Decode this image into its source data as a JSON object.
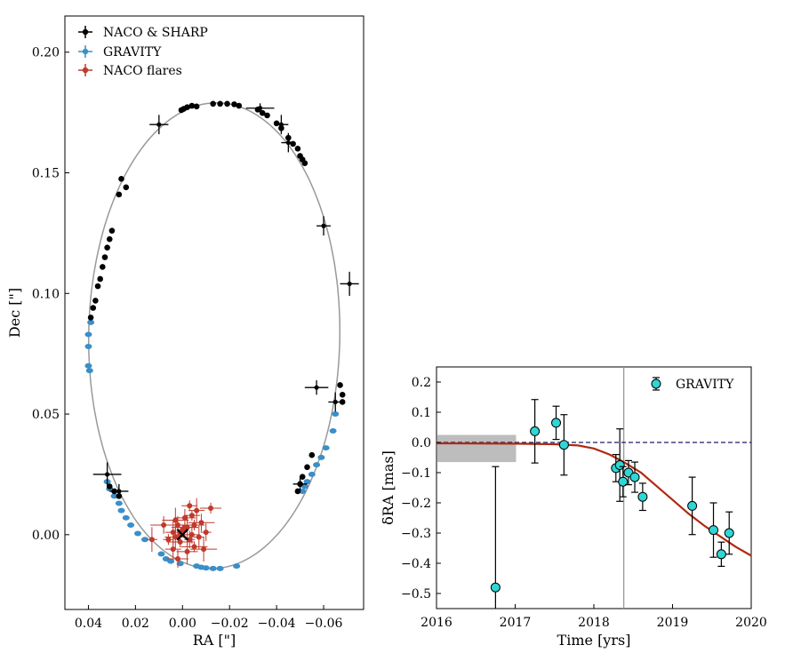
{
  "chart_data": [
    {
      "type": "scatter",
      "xlabel": "RA [\"]",
      "ylabel": "Dec [\"]",
      "xlim": [
        0.05,
        -0.077
      ],
      "ylim": [
        -0.031,
        0.215
      ],
      "xticks": [
        0.04,
        0.02,
        0.0,
        -0.02,
        -0.04,
        -0.06
      ],
      "xtick_labels": [
        "0.04",
        "0.02",
        "0.00",
        "−0.02",
        "−0.04",
        "−0.06"
      ],
      "yticks": [
        0.0,
        0.05,
        0.1,
        0.15,
        0.2
      ],
      "ytick_labels": [
        "0.00",
        "0.05",
        "0.10",
        "0.15",
        "0.20"
      ],
      "orbit": {
        "center_ra": -0.0135,
        "center_dec": 0.0825,
        "semi_ra": 0.0535,
        "semi_dec": 0.0965,
        "tilt_deg": 4
      },
      "legend": {
        "position": "top-left",
        "entries": [
          "NACO & SHARP",
          "GRAVITY",
          "NACO flares"
        ]
      },
      "colors": {
        "naco": "#000000",
        "gravity": "#3a8fc9",
        "flares": "#c0392b",
        "orbit": "#999999"
      },
      "series": [
        {
          "name": "NACO & SHARP",
          "points": [
            [
              -0.006,
              0.1775
            ],
            [
              -0.004,
              0.1778
            ],
            [
              -0.002,
              0.1772
            ],
            [
              -0.0005,
              0.1765
            ],
            [
              0.0005,
              0.176
            ],
            [
              -0.013,
              0.1786
            ],
            [
              -0.016,
              0.1786
            ],
            [
              -0.019,
              0.1786
            ],
            [
              -0.022,
              0.1784
            ],
            [
              -0.024,
              0.1778
            ],
            [
              -0.032,
              0.1762
            ],
            [
              -0.034,
              0.1748
            ],
            [
              -0.036,
              0.1738
            ],
            [
              -0.04,
              0.1705
            ],
            [
              -0.042,
              0.1685
            ],
            [
              -0.045,
              0.1645
            ],
            [
              -0.047,
              0.162
            ],
            [
              -0.049,
              0.16
            ],
            [
              -0.05,
              0.157
            ],
            [
              -0.051,
              0.1555
            ],
            [
              -0.052,
              0.154
            ],
            [
              0.024,
              0.144
            ],
            [
              0.026,
              0.1475
            ],
            [
              0.027,
              0.141
            ],
            [
              0.03,
              0.126
            ],
            [
              0.031,
              0.1225
            ],
            [
              0.032,
              0.119
            ],
            [
              0.033,
              0.115
            ],
            [
              0.034,
              0.111
            ],
            [
              0.035,
              0.106
            ],
            [
              0.036,
              0.103
            ],
            [
              0.037,
              0.097
            ],
            [
              0.038,
              0.094
            ],
            [
              0.039,
              0.09
            ],
            [
              -0.067,
              0.062
            ],
            [
              -0.068,
              0.058
            ],
            [
              -0.068,
              0.055
            ],
            [
              -0.055,
              0.033
            ],
            [
              -0.053,
              0.028
            ],
            [
              -0.051,
              0.024
            ],
            [
              -0.049,
              0.018
            ],
            [
              0.031,
              0.02
            ],
            [
              0.029,
              0.018
            ],
            [
              0.027,
              0.016
            ],
            [
              -0.05,
              0.021
            ]
          ],
          "errorbars": [
            [
              0.01,
              0.17,
              0.004,
              0.004
            ],
            [
              -0.033,
              0.1768,
              0.006,
              0.002
            ],
            [
              -0.042,
              0.17,
              0.003,
              0.004
            ],
            [
              -0.045,
              0.1625,
              0.003,
              0.004
            ],
            [
              -0.06,
              0.128,
              0.003,
              0.004
            ],
            [
              -0.071,
              0.104,
              0.004,
              0.005
            ],
            [
              -0.057,
              0.061,
              0.005,
              0.003
            ],
            [
              -0.065,
              0.055,
              0.003,
              0.004
            ],
            [
              0.032,
              0.025,
              0.006,
              0.005
            ],
            [
              0.027,
              0.018,
              0.004,
              0.003
            ],
            [
              -0.05,
              0.021,
              0.003,
              0.003
            ]
          ]
        },
        {
          "name": "GRAVITY",
          "points": [
            [
              0.039,
              0.088
            ],
            [
              0.04,
              0.083
            ],
            [
              0.04,
              0.078
            ],
            [
              0.04,
              0.07
            ],
            [
              0.0395,
              0.068
            ],
            [
              0.032,
              0.022
            ],
            [
              0.031,
              0.019
            ],
            [
              0.029,
              0.016
            ],
            [
              0.027,
              0.013
            ],
            [
              0.026,
              0.01
            ],
            [
              0.024,
              0.007
            ],
            [
              0.022,
              0.004
            ],
            [
              0.019,
              0.0005
            ],
            [
              0.016,
              -0.002
            ],
            [
              0.009,
              -0.008
            ],
            [
              0.007,
              -0.01
            ],
            [
              0.005,
              -0.011
            ],
            [
              0.001,
              -0.012
            ],
            [
              -0.006,
              -0.013
            ],
            [
              -0.008,
              -0.0135
            ],
            [
              -0.01,
              -0.0138
            ],
            [
              -0.013,
              -0.014
            ],
            [
              -0.016,
              -0.014
            ],
            [
              -0.023,
              -0.013
            ],
            [
              -0.051,
              0.018
            ],
            [
              -0.052,
              0.02
            ],
            [
              -0.053,
              0.022
            ],
            [
              -0.055,
              0.025
            ],
            [
              -0.057,
              0.029
            ],
            [
              -0.059,
              0.032
            ],
            [
              -0.061,
              0.036
            ],
            [
              -0.064,
              0.043
            ],
            [
              -0.065,
              0.05
            ]
          ]
        },
        {
          "name": "NACO flares",
          "points": [
            [
              0.0,
              0.002
            ],
            [
              0.002,
              0.004
            ],
            [
              -0.002,
              0.003
            ],
            [
              0.001,
              -0.003
            ],
            [
              -0.003,
              -0.002
            ],
            [
              0.004,
              0.001
            ],
            [
              -0.005,
              0.004
            ],
            [
              -0.008,
              0.005
            ],
            [
              -0.007,
              -0.001
            ],
            [
              -0.004,
              0.008
            ],
            [
              -0.001,
              0.007
            ],
            [
              0.003,
              0.006
            ],
            [
              0.006,
              -0.002
            ],
            [
              0.004,
              -0.006
            ],
            [
              -0.002,
              -0.007
            ],
            [
              -0.005,
              -0.005
            ],
            [
              -0.01,
              0.001
            ],
            [
              -0.006,
              0.01
            ],
            [
              -0.012,
              0.011
            ],
            [
              0.008,
              0.004
            ],
            [
              0.013,
              -0.002
            ],
            [
              -0.003,
              0.012
            ],
            [
              0.002,
              -0.01
            ],
            [
              -0.009,
              -0.006
            ],
            [
              0.001,
              0.0
            ],
            [
              -0.004,
              0.0
            ],
            [
              0.003,
              -0.001
            ],
            [
              -0.001,
              0.003
            ]
          ]
        }
      ],
      "sgr_a_marker": [
        0.0,
        0.0
      ]
    },
    {
      "type": "scatter",
      "xlabel": "Time [yrs]",
      "ylabel": "δRA [mas]",
      "xlim": [
        2016,
        2020
      ],
      "ylim": [
        -0.55,
        0.25
      ],
      "xticks": [
        2016,
        2017,
        2018,
        2019,
        2020
      ],
      "xtick_labels": [
        "2016",
        "2017",
        "2018",
        "2019",
        "2020"
      ],
      "yticks": [
        0.2,
        0.1,
        0.0,
        -0.1,
        -0.2,
        -0.3,
        -0.4,
        -0.5
      ],
      "ytick_labels": [
        "0.2",
        "0.1",
        "0.0",
        "−0.1",
        "−0.2",
        "−0.3",
        "−0.4",
        "−0.5"
      ],
      "legend": {
        "position": "top-right",
        "entries": [
          "GRAVITY"
        ]
      },
      "colors": {
        "points": "#2fd6d6",
        "model": "#b02a10",
        "zero_line": "#1a1a6e",
        "band": "#bdbdbd",
        "vline": "#999999"
      },
      "shaded_band": {
        "x": [
          2016,
          2017
        ],
        "y": [
          -0.065,
          0.025
        ]
      },
      "vertical_line_x": 2018.38,
      "zero_line_y": 0.0,
      "model_curve": [
        [
          2016,
          -0.003
        ],
        [
          2017,
          -0.004
        ],
        [
          2017.5,
          -0.006
        ],
        [
          2017.8,
          -0.01
        ],
        [
          2018.0,
          -0.02
        ],
        [
          2018.2,
          -0.04
        ],
        [
          2018.38,
          -0.065
        ],
        [
          2018.6,
          -0.1
        ],
        [
          2018.8,
          -0.145
        ],
        [
          2019.0,
          -0.19
        ],
        [
          2019.2,
          -0.235
        ],
        [
          2019.4,
          -0.275
        ],
        [
          2019.6,
          -0.31
        ],
        [
          2019.8,
          -0.345
        ],
        [
          2020,
          -0.375
        ]
      ],
      "series": [
        {
          "name": "GRAVITY",
          "points": [
            [
              2016.75,
              -0.48,
              0.4,
              0.12
            ],
            [
              2017.25,
              0.037,
              0.105,
              0.105
            ],
            [
              2017.52,
              0.065,
              0.055,
              0.055
            ],
            [
              2017.62,
              -0.008,
              0.1,
              0.1
            ],
            [
              2018.28,
              -0.085,
              0.045,
              0.045
            ],
            [
              2018.33,
              -0.075,
              0.12,
              0.12
            ],
            [
              2018.37,
              -0.13,
              0.05,
              0.05
            ],
            [
              2018.44,
              -0.1,
              0.04,
              0.04
            ],
            [
              2018.52,
              -0.115,
              0.05,
              0.05
            ],
            [
              2018.62,
              -0.18,
              0.045,
              0.045
            ],
            [
              2019.25,
              -0.21,
              0.095,
              0.095
            ],
            [
              2019.52,
              -0.29,
              0.09,
              0.09
            ],
            [
              2019.62,
              -0.37,
              0.04,
              0.04
            ],
            [
              2019.72,
              -0.3,
              0.07,
              0.07
            ]
          ]
        }
      ]
    }
  ]
}
